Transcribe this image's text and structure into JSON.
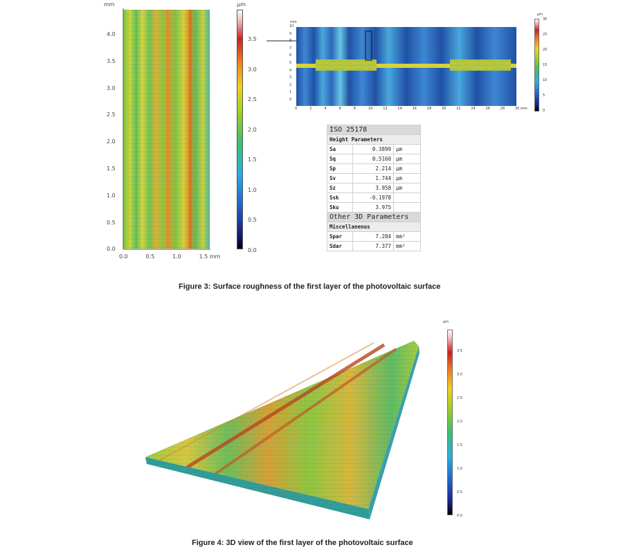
{
  "figure3": {
    "map2d": {
      "y_unit": "mm",
      "x_unit": "mm",
      "y_ticks": [
        "4.0",
        "3.5",
        "3.0",
        "2.5",
        "2.0",
        "1.5",
        "1.0",
        "0.5",
        "0.0"
      ],
      "x_ticks": [
        "0.0",
        "0.5",
        "1.0",
        "1.5 mm"
      ]
    },
    "colorbar": {
      "unit": "µm",
      "ticks": [
        "3.5",
        "3.0",
        "2.5",
        "2.0",
        "1.5",
        "1.0",
        "0.5",
        "0.0"
      ]
    },
    "overview": {
      "y_unit": "mm",
      "y_ticks": [
        "10",
        "9",
        "8",
        "7",
        "6",
        "5",
        "4",
        "3",
        "2",
        "1",
        "0"
      ],
      "x_ticks": [
        "0",
        "2",
        "4",
        "6",
        "8",
        "10",
        "12",
        "14",
        "16",
        "18",
        "20",
        "22",
        "24",
        "26",
        "28",
        "30 mm"
      ],
      "colorbar_unit": "µm",
      "colorbar_ticks": [
        "30",
        "25",
        "20",
        "15",
        "10",
        "5",
        "0"
      ]
    },
    "iso_table": {
      "title": "ISO 25178",
      "section1": "Height Parameters",
      "rows": [
        {
          "name": "Sa",
          "value": "0.3899",
          "unit": "µm"
        },
        {
          "name": "Sq",
          "value": "0.5160",
          "unit": "µm"
        },
        {
          "name": "Sp",
          "value": "2.214",
          "unit": "µm"
        },
        {
          "name": "Sv",
          "value": "1.744",
          "unit": "µm"
        },
        {
          "name": "Sz",
          "value": "3.958",
          "unit": "µm"
        },
        {
          "name": "Ssk",
          "value": "-0.1978",
          "unit": ""
        },
        {
          "name": "Sku",
          "value": "3.975",
          "unit": ""
        }
      ],
      "section2": "Other 3D Parameters",
      "section3": "Miscellaneous",
      "rows2": [
        {
          "name": "Spar",
          "value": "7.284",
          "unit": "mm²"
        },
        {
          "name": "Sdar",
          "value": "7.377",
          "unit": "mm²"
        }
      ]
    },
    "caption": "Figure 3: Surface roughness of the first layer of the photovoltaic surface"
  },
  "figure4": {
    "colorbar": {
      "unit": "µm",
      "ticks": [
        "3.5",
        "3.0",
        "2.5",
        "2.0",
        "1.5",
        "1.0",
        "0.5",
        "0.0"
      ]
    },
    "caption": "Figure 4: 3D view of the first layer of the photovoltaic surface"
  }
}
